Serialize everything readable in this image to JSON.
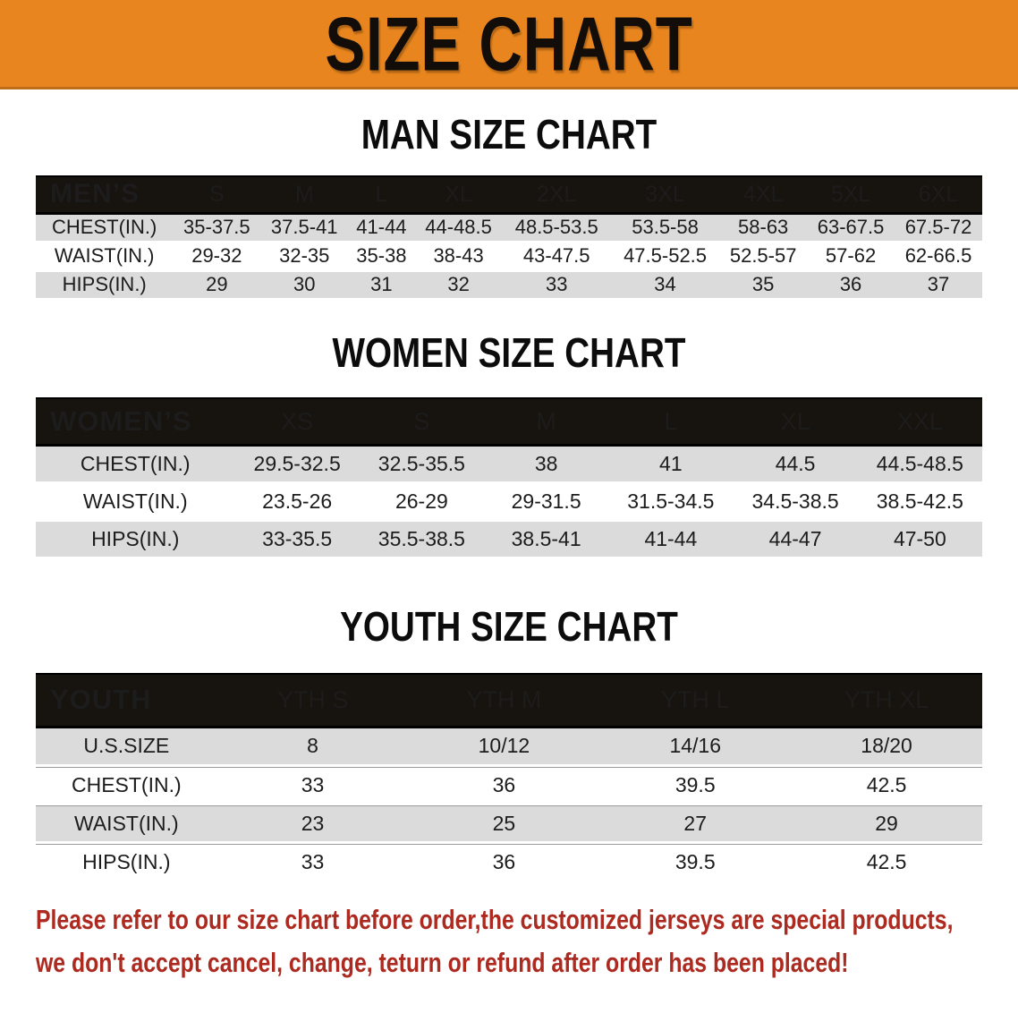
{
  "banner": {
    "title": "SIZE CHART",
    "bg_color": "#E8851E",
    "text_color": "#120D08"
  },
  "colors": {
    "table_header_bg": "#17130F",
    "row_stripe": "#DBDBDB",
    "disclaimer_red": "#AC2A20"
  },
  "sections": [
    {
      "heading": "MAN SIZE CHART",
      "table": {
        "header_label": "MEN’S",
        "columns": [
          "S",
          "M",
          "L",
          "XL",
          "2XL",
          "3XL",
          "4XL",
          "5XL",
          "6XL"
        ],
        "rows": [
          {
            "label": "CHEST(IN.)",
            "values": [
              "35-37.5",
              "37.5-41",
              "41-44",
              "44-48.5",
              "48.5-53.5",
              "53.5-58",
              "58-63",
              "63-67.5",
              "67.5-72"
            ]
          },
          {
            "label": "WAIST(IN.)",
            "values": [
              "29-32",
              "32-35",
              "35-38",
              "38-43",
              "43-47.5",
              "47.5-52.5",
              "52.5-57",
              "57-62",
              "62-66.5"
            ]
          },
          {
            "label": "HIPS(IN.)",
            "values": [
              "29",
              "30",
              "31",
              "32",
              "33",
              "34",
              "35",
              "36",
              "37"
            ]
          }
        ]
      }
    },
    {
      "heading": "WOMEN SIZE CHART",
      "table": {
        "header_label": "WOMEN’S",
        "columns": [
          "XS",
          "S",
          "M",
          "L",
          "XL",
          "XXL"
        ],
        "rows": [
          {
            "label": "CHEST(IN.)",
            "values": [
              "29.5-32.5",
              "32.5-35.5",
              "38",
              "41",
              "44.5",
              "44.5-48.5"
            ]
          },
          {
            "label": "WAIST(IN.)",
            "values": [
              "23.5-26",
              "26-29",
              "29-31.5",
              "31.5-34.5",
              "34.5-38.5",
              "38.5-42.5"
            ]
          },
          {
            "label": "HIPS(IN.)",
            "values": [
              "33-35.5",
              "35.5-38.5",
              "38.5-41",
              "41-44",
              "44-47",
              "47-50"
            ]
          }
        ]
      }
    },
    {
      "heading": "YOUTH SIZE CHART",
      "table": {
        "header_label": "YOUTH",
        "columns": [
          "YTH S",
          "YTH M",
          "YTH L",
          "YTH XL"
        ],
        "rows": [
          {
            "label": "U.S.SIZE",
            "values": [
              "8",
              "10/12",
              "14/16",
              "18/20"
            ]
          },
          {
            "label": "CHEST(IN.)",
            "values": [
              "33",
              "36",
              "39.5",
              "42.5"
            ]
          },
          {
            "label": "WAIST(IN.)",
            "values": [
              "23",
              "25",
              "27",
              "29"
            ]
          },
          {
            "label": "HIPS(IN.)",
            "values": [
              "33",
              "36",
              "39.5",
              "42.5"
            ]
          }
        ]
      }
    }
  ],
  "disclaimer": {
    "line1": "Please refer to our size chart before order,the customized jerseys are special products,",
    "line2": "we don't accept cancel, change, teturn or refund after order has been placed!"
  }
}
